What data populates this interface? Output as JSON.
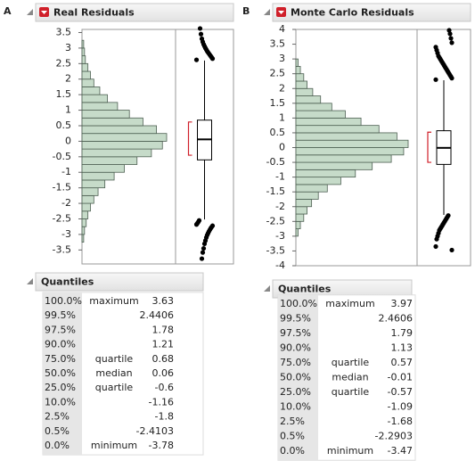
{
  "chart_data": [
    {
      "type": "histogram",
      "panel_label": "A",
      "title": "Real Residuals",
      "orientation": "horizontal",
      "color": "#c6dbc9",
      "ylim": [
        -3.95,
        3.6
      ],
      "yticks": [
        -3.5,
        -3,
        -2.5,
        -2,
        -1.5,
        -1,
        -0.5,
        0,
        0.5,
        1,
        1.5,
        2,
        2.5,
        3,
        3.5
      ],
      "bins": [
        -3.25,
        -3,
        -2.75,
        -2.5,
        -2.25,
        -2,
        -1.75,
        -1.5,
        -1.25,
        -1,
        -0.75,
        -0.5,
        -0.25,
        0,
        0.25,
        0.5,
        0.75,
        1,
        1.25,
        1.5,
        1.75,
        2,
        2.25,
        2.5,
        2.75,
        3,
        3.25
      ],
      "counts": [
        2,
        3,
        5,
        7,
        10,
        14,
        19,
        27,
        38,
        50,
        65,
        82,
        95,
        100,
        88,
        72,
        56,
        42,
        30,
        21,
        14,
        10,
        7,
        4,
        3,
        2
      ],
      "whiskers": [
        -2.52,
        2.6
      ],
      "shortest_half": [
        -0.45,
        0.62
      ],
      "outliers": [
        2.62,
        2.66,
        2.7,
        2.74,
        2.78,
        2.82,
        2.86,
        2.9,
        2.95,
        3.0,
        3.06,
        3.12,
        3.2,
        3.3,
        3.45,
        3.63,
        -2.55,
        -2.6,
        -2.64,
        -2.68,
        -2.72,
        -2.76,
        -2.8,
        -2.85,
        -2.9,
        -2.96,
        -3.02,
        -3.1,
        -3.2,
        -3.3,
        -3.45,
        -3.58,
        -3.78
      ],
      "quantiles_title": "Quantiles",
      "quantiles": [
        [
          "100.0%",
          "maximum",
          3.63
        ],
        [
          "99.5%",
          null,
          2.4406
        ],
        [
          "97.5%",
          null,
          1.78
        ],
        [
          "90.0%",
          null,
          1.21
        ],
        [
          "75.0%",
          "quartile",
          0.68
        ],
        [
          "50.0%",
          "median",
          0.06
        ],
        [
          "25.0%",
          "quartile",
          -0.6
        ],
        [
          "10.0%",
          null,
          -1.16
        ],
        [
          "2.5%",
          null,
          -1.8
        ],
        [
          "0.5%",
          null,
          -2.4103
        ],
        [
          "0.0%",
          "minimum",
          -3.78
        ]
      ]
    },
    {
      "type": "histogram",
      "panel_label": "B",
      "title": "Monte Carlo Residuals",
      "orientation": "horizontal",
      "color": "#c6dbc9",
      "ylim": [
        -4,
        4
      ],
      "yticks": [
        -4,
        -3.5,
        -3,
        -2.5,
        -2,
        -1.5,
        -1,
        -0.5,
        0,
        0.5,
        1,
        1.5,
        2,
        2.5,
        3,
        3.5,
        4
      ],
      "bins": [
        -3,
        -2.75,
        -2.5,
        -2.25,
        -2,
        -1.75,
        -1.5,
        -1.25,
        -1,
        -0.75,
        -0.5,
        -0.25,
        0,
        0.25,
        0.5,
        0.75,
        1,
        1.25,
        1.5,
        1.75,
        2,
        2.25,
        2.5,
        2.75,
        3
      ],
      "counts": [
        2,
        4,
        7,
        10,
        14,
        20,
        28,
        40,
        53,
        68,
        85,
        96,
        100,
        90,
        74,
        58,
        44,
        32,
        22,
        15,
        10,
        7,
        4,
        2
      ],
      "whiskers": [
        -2.28,
        2.28
      ],
      "shortest_half": [
        -0.5,
        0.52
      ],
      "outliers": [
        2.3,
        2.35,
        2.4,
        2.45,
        2.5,
        2.55,
        2.6,
        2.65,
        2.7,
        2.75,
        2.8,
        2.85,
        2.9,
        2.95,
        3.0,
        3.05,
        3.1,
        3.2,
        3.3,
        3.4,
        3.55,
        3.7,
        3.85,
        3.97,
        -2.3,
        -2.35,
        -2.4,
        -2.45,
        -2.5,
        -2.55,
        -2.6,
        -2.65,
        -2.7,
        -2.75,
        -2.8,
        -2.9,
        -3.0,
        -3.1,
        -3.35,
        -3.47
      ],
      "quantiles_title": "Quantiles",
      "quantiles": [
        [
          "100.0%",
          "maximum",
          3.97
        ],
        [
          "99.5%",
          null,
          2.4606
        ],
        [
          "97.5%",
          null,
          1.79
        ],
        [
          "90.0%",
          null,
          1.13
        ],
        [
          "75.0%",
          "quartile",
          0.57
        ],
        [
          "50.0%",
          "median",
          -0.01
        ],
        [
          "25.0%",
          "quartile",
          -0.57
        ],
        [
          "10.0%",
          null,
          -1.09
        ],
        [
          "2.5%",
          null,
          -1.68
        ],
        [
          "0.5%",
          null,
          -2.2903
        ],
        [
          "0.0%",
          "minimum",
          -3.47
        ]
      ]
    }
  ]
}
